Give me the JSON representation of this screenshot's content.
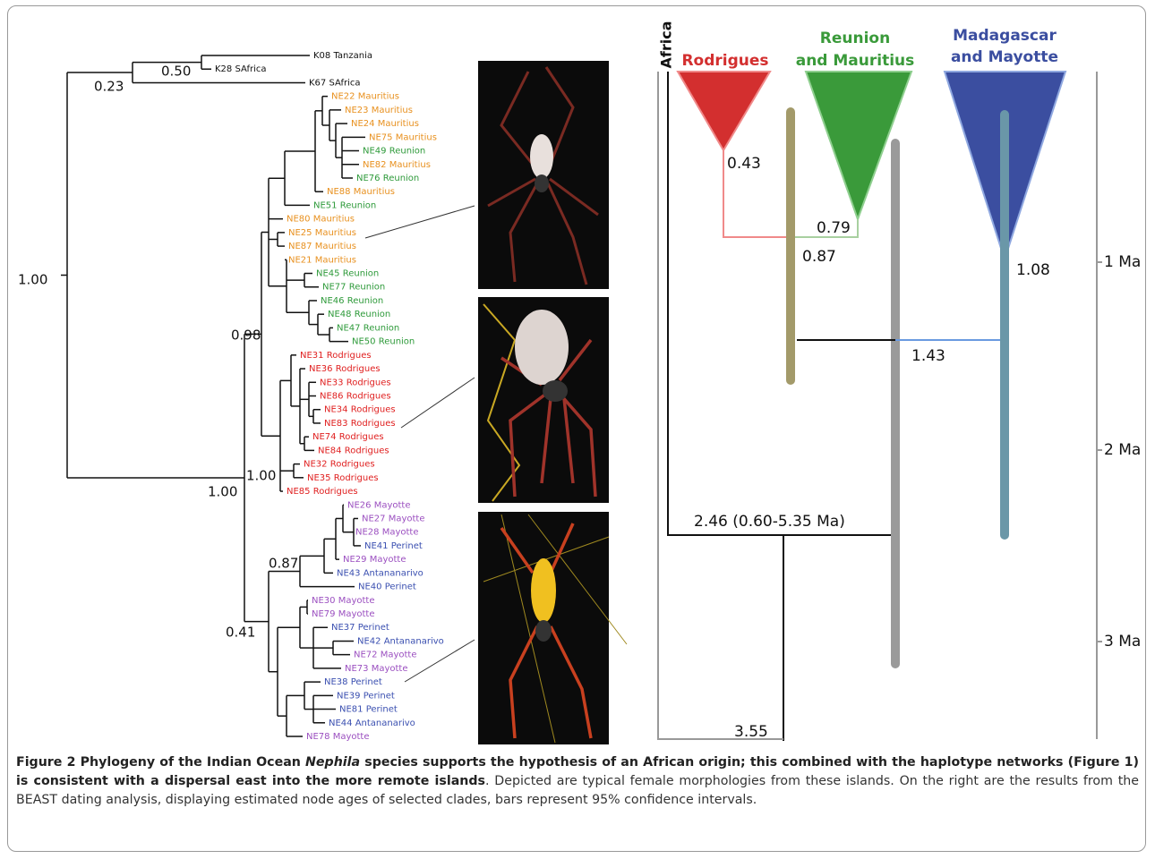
{
  "tree": {
    "leaves": [
      "K08 Tanzania",
      "K28 SAfrica",
      "K67 SAfrica",
      "NE22 Mauritius",
      "NE23 Mauritius",
      "NE24 Mauritius",
      "NE75 Mauritius",
      "NE49 Reunion",
      "NE82 Mauritius",
      "NE76 Reunion",
      "NE88 Mauritius",
      "NE51 Reunion",
      "NE80 Mauritius",
      "NE25 Mauritius",
      "NE87 Mauritius",
      "NE21 Mauritius",
      "NE45 Reunion",
      "NE77 Reunion",
      "NE46 Reunion",
      "NE48 Reunion",
      "NE47 Reunion",
      "NE50 Reunion",
      "NE31 Rodrigues",
      "NE36 Rodrigues",
      "NE33 Rodrigues",
      "NE86 Rodrigues",
      "NE34 Rodrigues",
      "NE83 Rodrigues",
      "NE74 Rodrigues",
      "NE84 Rodrigues",
      "NE32 Rodrigues",
      "NE35 Rodrigues",
      "NE85 Rodrigues",
      "NE26 Mayotte",
      "NE27 Mayotte",
      "NE28 Mayotte",
      "NE41 Perinet",
      "NE29 Mayotte",
      "NE43 Antananarivo",
      "NE40 Perinet",
      "NE30 Mayotte",
      "NE79 Mayotte",
      "NE37 Perinet",
      "NE42 Antananarivo",
      "NE72 Mayotte",
      "NE73 Mayotte",
      "NE38 Perinet",
      "NE39 Perinet",
      "NE81 Perinet",
      "NE44 Antananarivo",
      "NE78 Mayotte"
    ],
    "support": [
      "0.23",
      "0.50",
      "1.00",
      "0.98",
      "1.00",
      "1.00",
      "0.87",
      "0.41"
    ]
  },
  "dating": {
    "africa": "Africa",
    "clades": [
      [
        "Rodrigues"
      ],
      [
        "Reunion",
        "and Mauritius"
      ],
      [
        "Madagascar",
        "and Mayotte"
      ]
    ],
    "node_ages": [
      "0.43",
      "0.79",
      "0.87",
      "1.08",
      "1.43",
      "2.46 (0.60-5.35 Ma)",
      "3.55"
    ],
    "timescale": [
      "1 Ma",
      "2 Ma",
      "3 Ma"
    ]
  },
  "caption": {
    "title_start": "Figure 2 Phylogeny of the Indian Ocean ",
    "title_italic": "Nephila",
    "title_end": " species supports the hypothesis of an African origin; this combined with the haplotype networks (Figure 1) is consistent with a dispersal east into the more remote islands",
    "body": ". Depicted are typical female morphologies from these islands. On the right are the results from the BEAST dating analysis, displaying estimated node ages of selected clades, bars represent 95% confidence intervals."
  }
}
